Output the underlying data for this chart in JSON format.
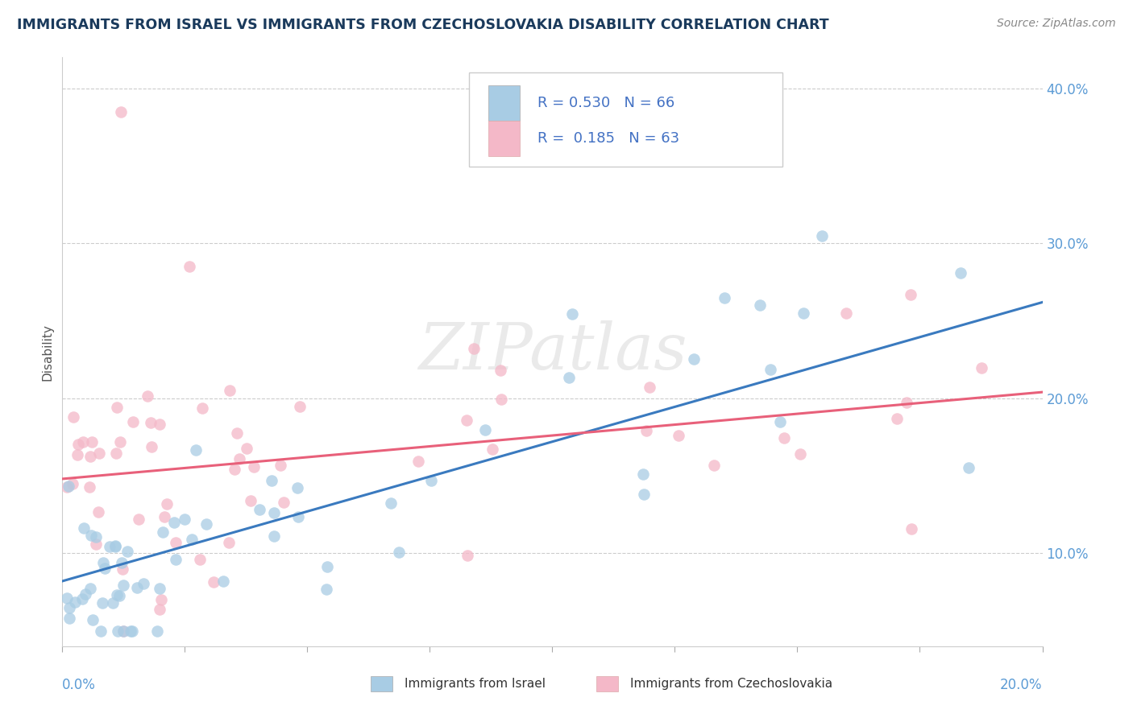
{
  "title": "IMMIGRANTS FROM ISRAEL VS IMMIGRANTS FROM CZECHOSLOVAKIA DISABILITY CORRELATION CHART",
  "source": "Source: ZipAtlas.com",
  "ylabel": "Disability",
  "legend_r": [
    0.53,
    0.185
  ],
  "legend_n": [
    66,
    63
  ],
  "watermark": "ZIPatlas",
  "blue_color": "#a8cce4",
  "pink_color": "#f4b8c8",
  "blue_line_color": "#3a7abf",
  "pink_line_color": "#e8607a",
  "xlim": [
    0.0,
    0.2
  ],
  "ylim": [
    0.04,
    0.42
  ],
  "israel_intercept": 0.082,
  "israel_slope": 0.9,
  "czech_intercept": 0.148,
  "czech_slope": 0.28,
  "figsize": [
    14.06,
    8.92
  ],
  "dpi": 100
}
